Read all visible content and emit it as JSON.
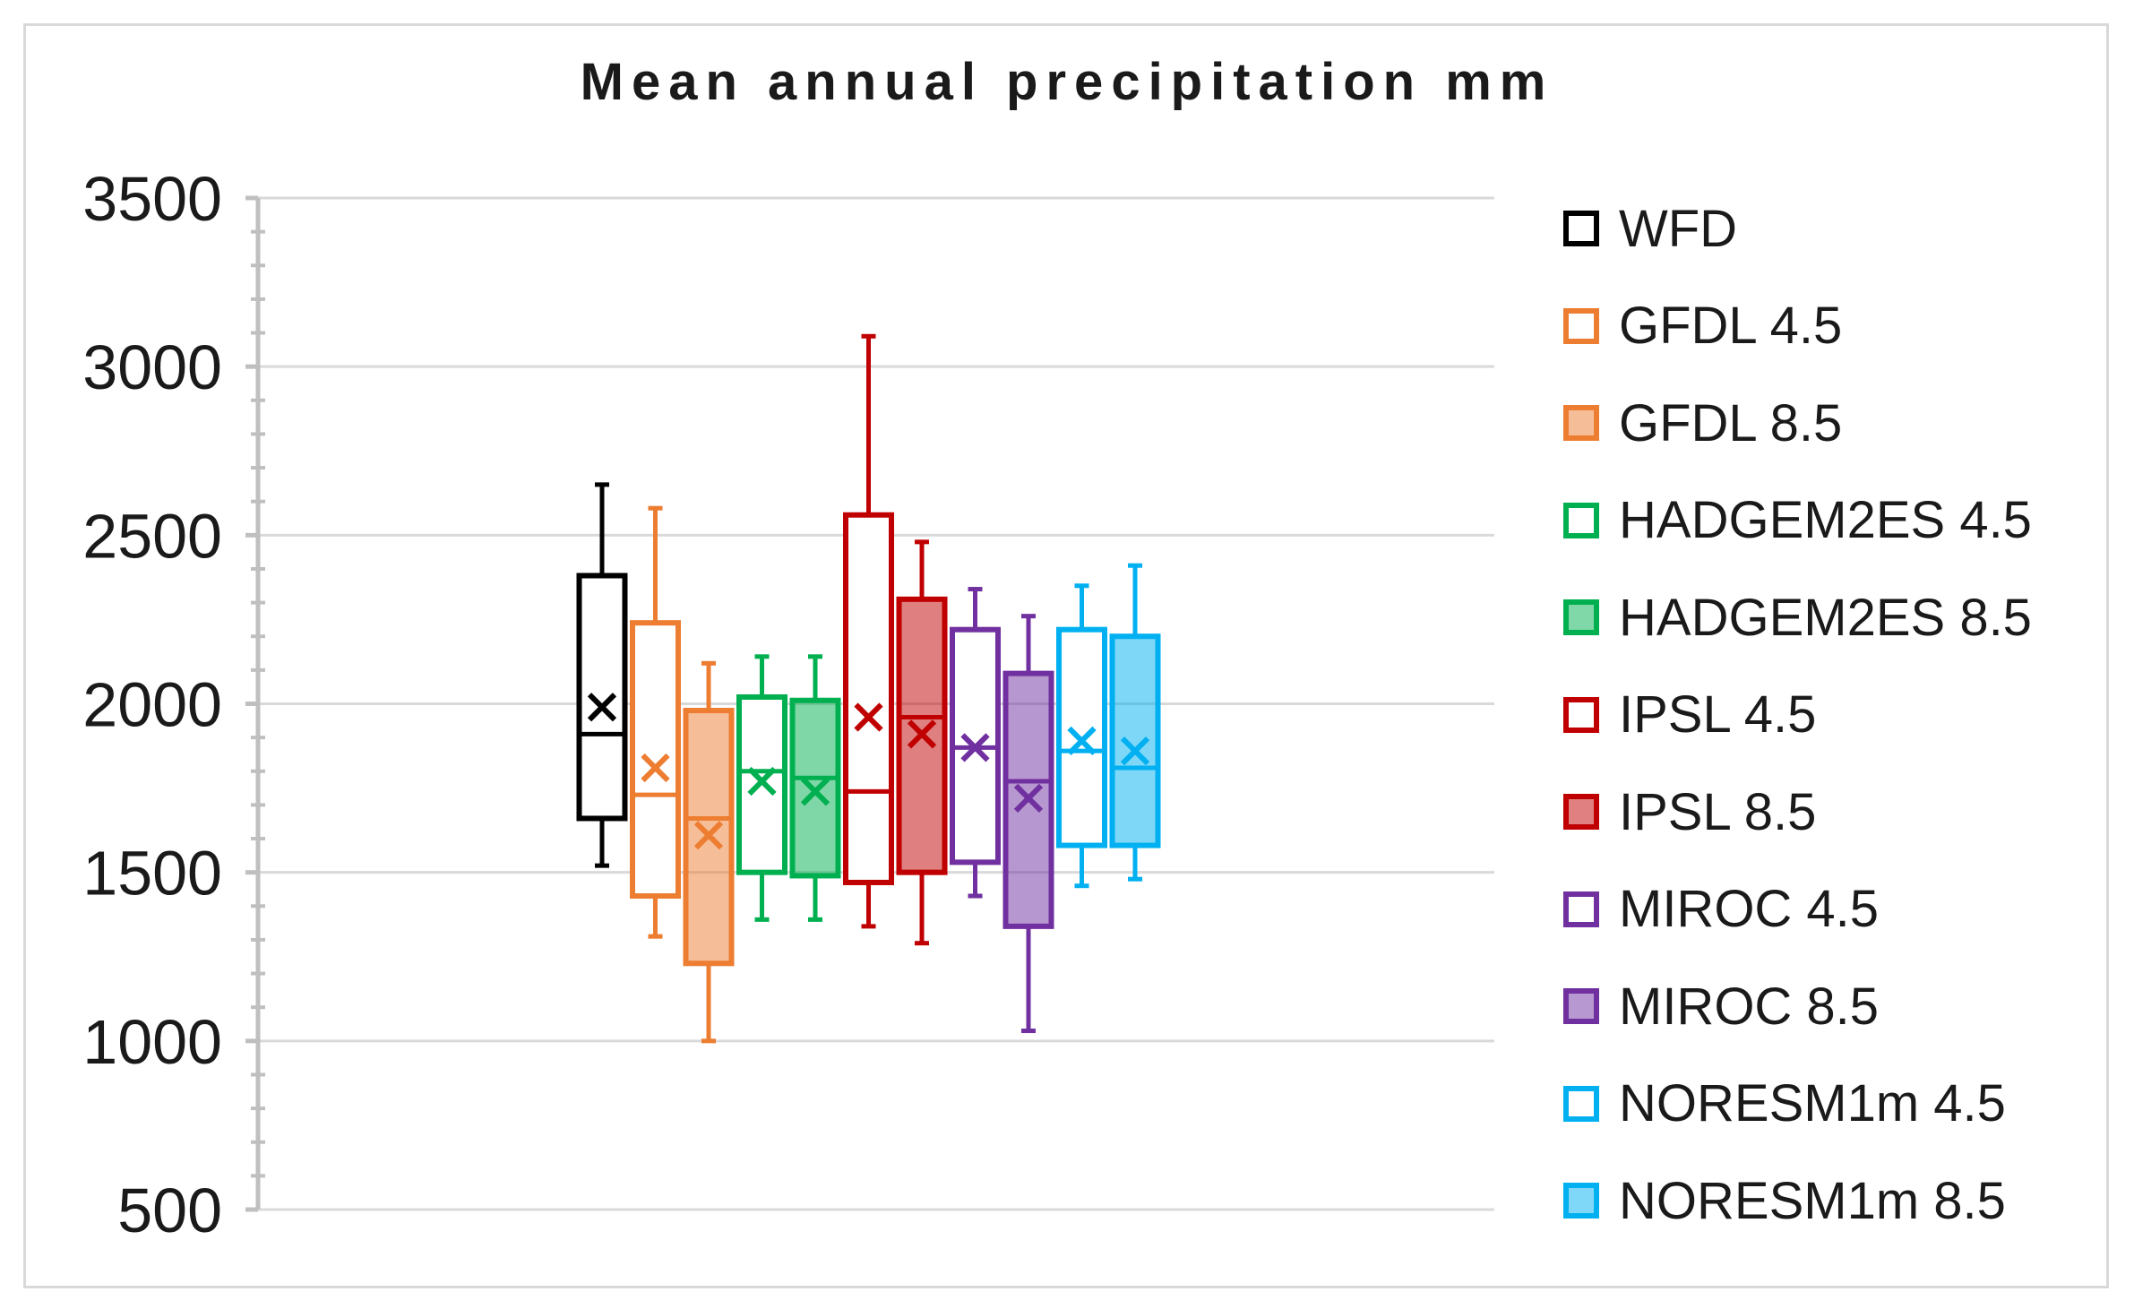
{
  "chart_data": {
    "type": "box",
    "title": "Mean annual precipitation mm",
    "xlabel": "",
    "ylabel": "",
    "ylim": [
      500,
      3500
    ],
    "yticks": [
      500,
      1000,
      1500,
      2000,
      2500,
      3000,
      3500
    ],
    "grid": true,
    "legend_position": "right",
    "series": [
      {
        "name": "WFD",
        "color": "#000000",
        "filled": false,
        "min": 1520,
        "q1": 1660,
        "median": 1910,
        "q3": 2380,
        "max": 2650,
        "mean": 1990
      },
      {
        "name": "GFDL 4.5",
        "color": "#ed7d31",
        "filled": false,
        "min": 1310,
        "q1": 1430,
        "median": 1730,
        "q3": 2240,
        "max": 2580,
        "mean": 1810
      },
      {
        "name": "GFDL 8.5",
        "color": "#ed7d31",
        "filled": true,
        "min": 1000,
        "q1": 1230,
        "median": 1660,
        "q3": 1980,
        "max": 2120,
        "mean": 1610
      },
      {
        "name": "HADGEM2ES 4.5",
        "color": "#00b050",
        "filled": false,
        "min": 1360,
        "q1": 1500,
        "median": 1800,
        "q3": 2020,
        "max": 2140,
        "mean": 1770
      },
      {
        "name": "HADGEM2ES 8.5",
        "color": "#00b050",
        "filled": true,
        "min": 1360,
        "q1": 1490,
        "median": 1780,
        "q3": 2010,
        "max": 2140,
        "mean": 1740
      },
      {
        "name": "IPSL 4.5",
        "color": "#c00000",
        "filled": false,
        "min": 1340,
        "q1": 1470,
        "median": 1740,
        "q3": 2560,
        "max": 3090,
        "mean": 1960
      },
      {
        "name": "IPSL 8.5",
        "color": "#c00000",
        "filled": true,
        "min": 1290,
        "q1": 1500,
        "median": 1960,
        "q3": 2310,
        "max": 2480,
        "mean": 1910
      },
      {
        "name": "MIROC 4.5",
        "color": "#7030a0",
        "filled": false,
        "min": 1430,
        "q1": 1530,
        "median": 1870,
        "q3": 2220,
        "max": 2340,
        "mean": 1870
      },
      {
        "name": "MIROC 8.5",
        "color": "#7030a0",
        "filled": true,
        "min": 1030,
        "q1": 1340,
        "median": 1770,
        "q3": 2090,
        "max": 2260,
        "mean": 1720
      },
      {
        "name": "NORESM1m 4.5",
        "color": "#00b0f0",
        "filled": false,
        "min": 1460,
        "q1": 1580,
        "median": 1860,
        "q3": 2220,
        "max": 2350,
        "mean": 1890
      },
      {
        "name": "NORESM1m 8.5",
        "color": "#00b0f0",
        "filled": true,
        "min": 1480,
        "q1": 1580,
        "median": 1810,
        "q3": 2200,
        "max": 2410,
        "mean": 1860
      }
    ]
  }
}
